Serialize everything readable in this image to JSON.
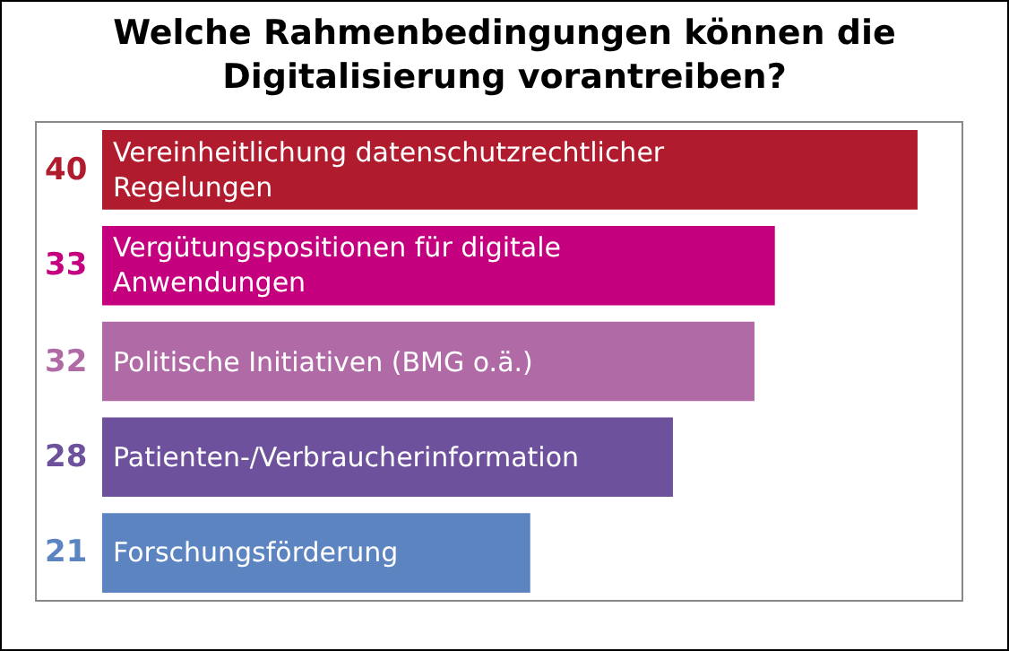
{
  "chart_data": {
    "type": "bar",
    "orientation": "horizontal",
    "title": "Welche Rahmenbedingungen können die Digitalisierung vorantreiben?",
    "categories": [
      "Vereinheitlichung datenschutzrechtlicher Regelungen",
      "Vergütungspositionen für digitale Anwendungen",
      "Politische Initiativen (BMG o.ä.)",
      "Patienten-/Verbraucherinformation",
      "Forschungsförderung"
    ],
    "values": [
      40,
      33,
      32,
      28,
      21
    ],
    "colors": [
      "#b01c2e",
      "#c4007e",
      "#b06aa6",
      "#6e519c",
      "#5b84c0"
    ],
    "data_labels": true
  }
}
